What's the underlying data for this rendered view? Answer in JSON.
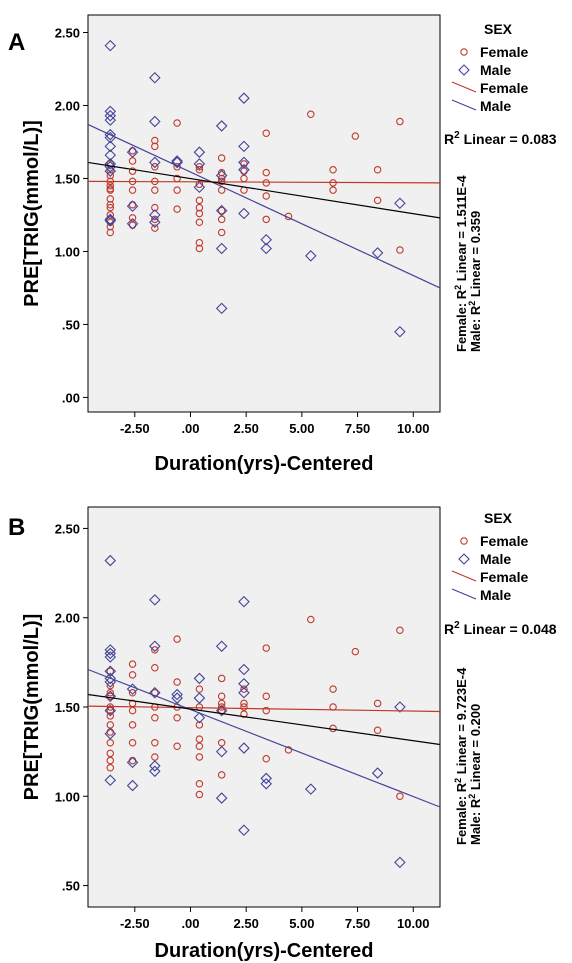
{
  "colors": {
    "female": "#c0392b",
    "male": "#44449a",
    "overall": "#000000",
    "plot_bg": "#f0f0f0"
  },
  "chart_data": [
    {
      "panel": "A",
      "type": "scatter",
      "xlabel": "Duration(yrs)-Centered",
      "ylabel": "PRE[TRIG(mmol/L)]",
      "xlim": [
        -4.6,
        11.2
      ],
      "ylim": [
        -0.1,
        2.62
      ],
      "xticks": [
        -2.5,
        0,
        2.5,
        5,
        7.5,
        10
      ],
      "xtick_labels": [
        "-2.50",
        ".00",
        "2.50",
        "5.00",
        "7.50",
        "10.00"
      ],
      "yticks": [
        0,
        0.5,
        1,
        1.5,
        2,
        2.5
      ],
      "ytick_labels": [
        ".00",
        ".50",
        "1.00",
        "1.50",
        "2.00",
        "2.50"
      ],
      "legend": {
        "title": "SEX",
        "items": [
          "Female",
          "Male",
          "Female",
          "Male"
        ],
        "placement": "right"
      },
      "annotations": {
        "overall": "Linear = 0.083",
        "female": "Female: R",
        "female_value": " Linear = 1.511E-4",
        "male": "Male: R",
        "male_value": " Linear = 0.359",
        "r2": "R",
        "sup": "2"
      },
      "series": [
        {
          "name": "Female",
          "marker": "circle",
          "x": [
            -3.6,
            -3.6,
            -3.6,
            -3.6,
            -3.6,
            -3.6,
            -3.6,
            -3.6,
            -3.6,
            -3.6,
            -3.6,
            -3.6,
            -3.6,
            -3.6,
            -2.6,
            -2.6,
            -2.6,
            -2.6,
            -2.6,
            -2.6,
            -2.6,
            -2.6,
            -1.6,
            -1.6,
            -1.6,
            -1.6,
            -1.6,
            -1.6,
            -1.6,
            -1.6,
            -0.6,
            -0.6,
            -0.6,
            -0.6,
            -0.6,
            0.4,
            0.4,
            0.4,
            0.4,
            0.4,
            0.4,
            0.4,
            0.4,
            0.4,
            1.4,
            1.4,
            1.4,
            1.4,
            1.4,
            1.4,
            1.4,
            1.4,
            2.4,
            2.4,
            2.4,
            2.4,
            3.4,
            3.4,
            3.4,
            3.4,
            3.4,
            4.4,
            5.4,
            6.4,
            6.4,
            6.4,
            7.4,
            8.4,
            8.4,
            9.4,
            9.4
          ],
          "y": [
            1.56,
            1.52,
            1.48,
            1.45,
            1.43,
            1.42,
            1.36,
            1.32,
            1.3,
            1.25,
            1.2,
            1.17,
            1.13,
            1.6,
            1.69,
            1.62,
            1.55,
            1.48,
            1.42,
            1.32,
            1.23,
            1.18,
            1.76,
            1.72,
            1.58,
            1.48,
            1.42,
            1.3,
            1.22,
            1.16,
            1.88,
            1.58,
            1.5,
            1.42,
            1.29,
            1.58,
            1.46,
            1.35,
            1.3,
            1.26,
            1.2,
            1.06,
            1.02,
            1.56,
            1.64,
            1.54,
            1.5,
            1.48,
            1.42,
            1.28,
            1.22,
            1.13,
            1.6,
            1.55,
            1.5,
            1.42,
            1.81,
            1.54,
            1.47,
            1.38,
            1.22,
            1.24,
            1.94,
            1.56,
            1.47,
            1.42,
            1.79,
            1.56,
            1.35,
            1.89,
            1.01
          ]
        },
        {
          "name": "Male",
          "marker": "diamond",
          "x": [
            -3.6,
            -3.6,
            -3.6,
            -3.6,
            -3.6,
            -3.6,
            -3.6,
            -3.6,
            -3.6,
            -3.6,
            -3.6,
            -3.6,
            -3.6,
            -2.6,
            -2.6,
            -2.6,
            -1.6,
            -1.6,
            -1.6,
            -1.6,
            -1.6,
            -0.6,
            -0.6,
            0.4,
            0.4,
            0.4,
            1.4,
            1.4,
            1.4,
            1.4,
            1.4,
            2.4,
            2.4,
            2.4,
            2.4,
            2.4,
            3.4,
            3.4,
            5.4,
            8.4,
            9.4,
            9.4
          ],
          "y": [
            2.41,
            1.96,
            1.93,
            1.9,
            1.8,
            1.78,
            1.72,
            1.66,
            1.6,
            1.58,
            1.55,
            1.22,
            1.21,
            1.68,
            1.31,
            1.19,
            2.19,
            1.89,
            1.61,
            1.25,
            1.2,
            1.62,
            1.61,
            1.6,
            1.68,
            1.44,
            1.86,
            1.52,
            1.28,
            1.02,
            0.61,
            2.05,
            1.72,
            1.61,
            1.56,
            1.26,
            1.08,
            1.02,
            0.97,
            0.99,
            1.33,
            0.45
          ]
        }
      ],
      "fits": [
        {
          "name": "Female",
          "x": [
            -4.6,
            11.2
          ],
          "y": [
            1.48,
            1.47
          ]
        },
        {
          "name": "Male",
          "x": [
            -4.6,
            11.2
          ],
          "y": [
            1.87,
            0.75
          ]
        },
        {
          "name": "Overall",
          "x": [
            -4.6,
            11.2
          ],
          "y": [
            1.61,
            1.23
          ]
        }
      ]
    },
    {
      "panel": "B",
      "type": "scatter",
      "xlabel": "Duration(yrs)-Centered",
      "ylabel": "PRE[TRIG(mmol/L)]",
      "xlim": [
        -4.6,
        11.2
      ],
      "ylim": [
        0.38,
        2.62
      ],
      "xticks": [
        -2.5,
        0,
        2.5,
        5,
        7.5,
        10
      ],
      "xtick_labels": [
        "-2.50",
        ".00",
        "2.50",
        "5.00",
        "7.50",
        "10.00"
      ],
      "yticks": [
        0.5,
        1,
        1.5,
        2,
        2.5
      ],
      "ytick_labels": [
        ".50",
        "1.00",
        "1.50",
        "2.00",
        "2.50"
      ],
      "legend": {
        "title": "SEX",
        "items": [
          "Female",
          "Male",
          "Female",
          "Male"
        ],
        "placement": "right"
      },
      "annotations": {
        "overall": "Linear = 0.048",
        "female": "Female: R",
        "female_value": " Linear = 9.723E-4",
        "male": "Male: R",
        "male_value": " Linear = 0.200",
        "r2": "R",
        "sup": "2"
      },
      "series": [
        {
          "name": "Female",
          "marker": "circle",
          "x": [
            -3.6,
            -3.6,
            -3.6,
            -3.6,
            -3.6,
            -3.6,
            -3.6,
            -3.6,
            -3.6,
            -3.6,
            -3.6,
            -3.6,
            -3.6,
            -2.6,
            -2.6,
            -2.6,
            -2.6,
            -2.6,
            -2.6,
            -2.6,
            -2.6,
            -1.6,
            -1.6,
            -1.6,
            -1.6,
            -1.6,
            -1.6,
            -1.6,
            -0.6,
            -0.6,
            -0.6,
            -0.6,
            -0.6,
            0.4,
            0.4,
            0.4,
            0.4,
            0.4,
            0.4,
            0.4,
            0.4,
            1.4,
            1.4,
            1.4,
            1.4,
            1.4,
            1.4,
            1.4,
            2.4,
            2.4,
            2.4,
            2.4,
            3.4,
            3.4,
            3.4,
            3.4,
            4.4,
            5.4,
            6.4,
            6.4,
            6.4,
            7.4,
            8.4,
            8.4,
            9.4,
            9.4
          ],
          "y": [
            1.62,
            1.58,
            1.56,
            1.5,
            1.48,
            1.45,
            1.4,
            1.36,
            1.3,
            1.24,
            1.2,
            1.16,
            1.7,
            1.74,
            1.68,
            1.58,
            1.52,
            1.48,
            1.4,
            1.3,
            1.2,
            1.82,
            1.72,
            1.58,
            1.5,
            1.44,
            1.3,
            1.22,
            1.88,
            1.64,
            1.5,
            1.44,
            1.28,
            1.6,
            1.5,
            1.4,
            1.32,
            1.28,
            1.22,
            1.07,
            1.01,
            1.66,
            1.56,
            1.52,
            1.5,
            1.48,
            1.3,
            1.12,
            1.6,
            1.52,
            1.5,
            1.46,
            1.83,
            1.56,
            1.48,
            1.21,
            1.26,
            1.99,
            1.6,
            1.5,
            1.38,
            1.81,
            1.52,
            1.37,
            1.93,
            1.0
          ]
        },
        {
          "name": "Male",
          "marker": "diamond",
          "x": [
            -3.6,
            -3.6,
            -3.6,
            -3.6,
            -3.6,
            -3.6,
            -3.6,
            -3.6,
            -3.6,
            -3.6,
            -3.6,
            -2.6,
            -2.6,
            -2.6,
            -1.6,
            -1.6,
            -1.6,
            -1.6,
            -1.6,
            -0.6,
            -0.6,
            0.4,
            0.4,
            0.4,
            1.4,
            1.4,
            1.4,
            1.4,
            2.4,
            2.4,
            2.4,
            2.4,
            2.4,
            2.4,
            3.4,
            3.4,
            5.4,
            8.4,
            9.4,
            9.4
          ],
          "y": [
            2.32,
            1.82,
            1.8,
            1.78,
            1.7,
            1.66,
            1.64,
            1.56,
            1.48,
            1.35,
            1.09,
            1.6,
            1.19,
            1.06,
            2.1,
            1.84,
            1.58,
            1.17,
            1.14,
            1.57,
            1.55,
            1.66,
            1.55,
            1.44,
            1.84,
            1.48,
            1.25,
            0.99,
            2.09,
            1.71,
            1.63,
            1.58,
            1.27,
            0.81,
            1.1,
            1.07,
            1.04,
            1.13,
            1.5,
            0.63
          ]
        }
      ],
      "fits": [
        {
          "name": "Female",
          "x": [
            -4.6,
            11.2
          ],
          "y": [
            1.505,
            1.475
          ]
        },
        {
          "name": "Male",
          "x": [
            -4.6,
            11.2
          ],
          "y": [
            1.71,
            0.94
          ]
        },
        {
          "name": "Overall",
          "x": [
            -4.6,
            11.2
          ],
          "y": [
            1.57,
            1.29
          ]
        }
      ]
    }
  ]
}
